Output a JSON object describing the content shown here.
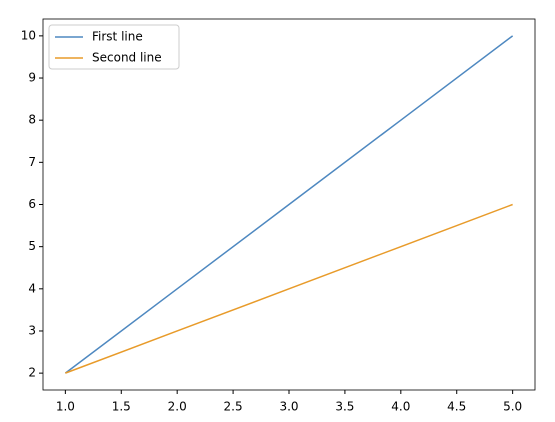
{
  "chart_data": {
    "type": "line",
    "x": [
      1,
      2,
      3,
      4,
      5
    ],
    "series": [
      {
        "name": "First line",
        "color": "#4e88c0",
        "values": [
          2,
          4,
          6,
          8,
          10
        ]
      },
      {
        "name": "Second line",
        "color": "#e89b2a",
        "values": [
          2,
          3,
          4,
          5,
          6
        ]
      }
    ],
    "xlim": [
      0.8,
      5.2
    ],
    "ylim": [
      1.6,
      10.4
    ],
    "xticks": [
      {
        "value": 1,
        "label": "1.0"
      },
      {
        "value": 1.5,
        "label": "1.5"
      },
      {
        "value": 2,
        "label": "2.0"
      },
      {
        "value": 2.5,
        "label": "2.5"
      },
      {
        "value": 3,
        "label": "3.0"
      },
      {
        "value": 3.5,
        "label": "3.5"
      },
      {
        "value": 4,
        "label": "4.0"
      },
      {
        "value": 4.5,
        "label": "4.5"
      },
      {
        "value": 5,
        "label": "5.0"
      }
    ],
    "yticks": [
      2,
      3,
      4,
      5,
      6,
      7,
      8,
      9,
      10
    ],
    "legend": "upper-left"
  }
}
